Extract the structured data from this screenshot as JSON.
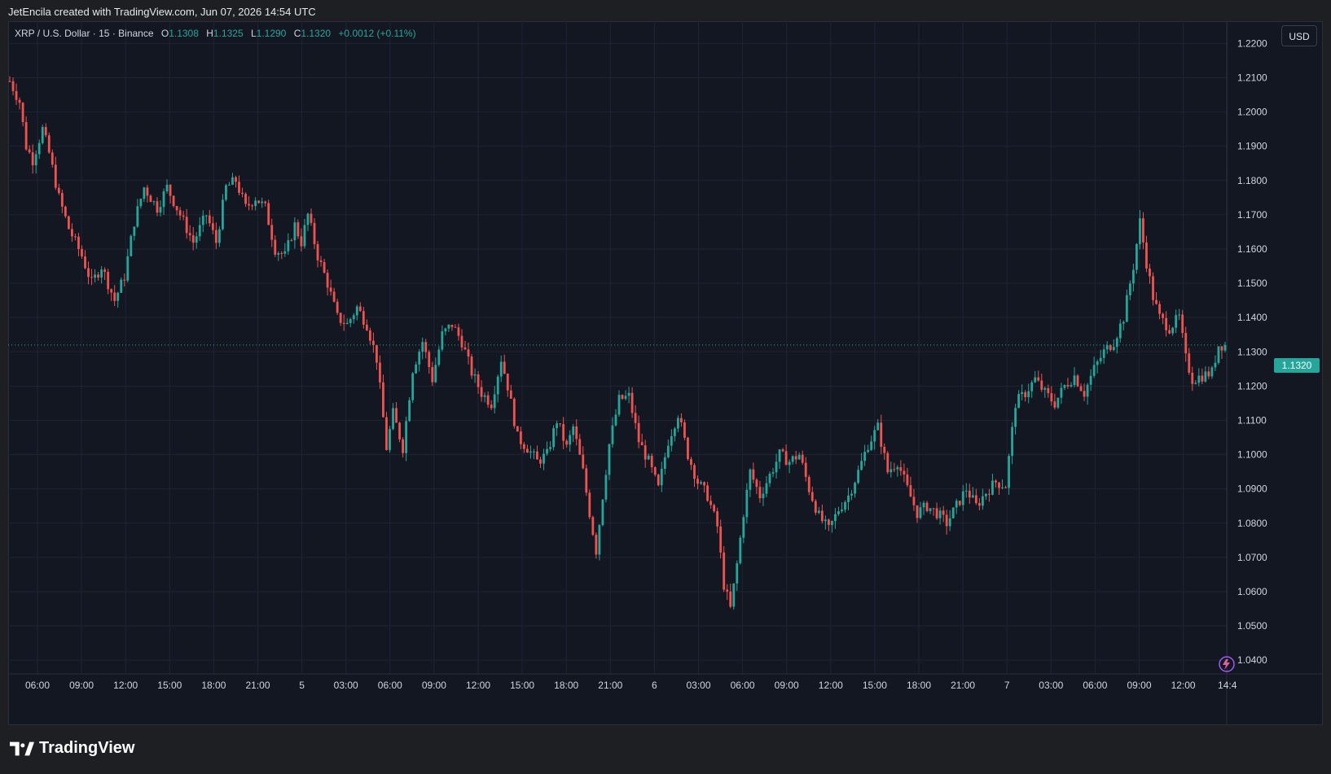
{
  "banner": "JetEncila created with TradingView.com, Jun 07, 2026 14:54 UTC",
  "legend": {
    "symbol": "XRP / U.S. Dollar · 15 · Binance",
    "o_label": "O",
    "o_value": "1.1308",
    "h_label": "H",
    "h_value": "1.1325",
    "l_label": "L",
    "l_value": "1.1290",
    "c_label": "C",
    "c_value": "1.1320",
    "change": "+0.0012 (+0.11%)"
  },
  "currency": "USD",
  "last_price": "1.1320",
  "brand": "TradingView",
  "colors": {
    "up": "#26a69a",
    "down": "#ef5350",
    "background": "#131722",
    "grid": "#1f2433"
  },
  "chart_data": {
    "type": "candlestick",
    "interval_minutes": 15,
    "ylim": [
      1.036,
      1.2265
    ],
    "y_ticks": [
      "1.2200",
      "1.2100",
      "1.2000",
      "1.1900",
      "1.1800",
      "1.1700",
      "1.1600",
      "1.1500",
      "1.1400",
      "1.1300",
      "1.1200",
      "1.1100",
      "1.1000",
      "1.0900",
      "1.0800",
      "1.0700",
      "1.0600",
      "1.0500",
      "1.0400"
    ],
    "x_labels": [
      "06:00",
      "09:00",
      "12:00",
      "15:00",
      "18:00",
      "21:00",
      "5",
      "03:00",
      "06:00",
      "09:00",
      "12:00",
      "15:00",
      "18:00",
      "21:00",
      "6",
      "03:00",
      "06:00",
      "09:00",
      "12:00",
      "15:00",
      "18:00",
      "21:00",
      "7",
      "03:00",
      "06:00",
      "09:00",
      "12:00",
      "14:4"
    ],
    "last_close": 1.132,
    "path_keypoints": [
      [
        0,
        1.209
      ],
      [
        3,
        1.203
      ],
      [
        5,
        1.19
      ],
      [
        7,
        1.186
      ],
      [
        10,
        1.195
      ],
      [
        12,
        1.188
      ],
      [
        15,
        1.175
      ],
      [
        18,
        1.166
      ],
      [
        22,
        1.158
      ],
      [
        25,
        1.15
      ],
      [
        28,
        1.155
      ],
      [
        32,
        1.145
      ],
      [
        35,
        1.152
      ],
      [
        38,
        1.168
      ],
      [
        41,
        1.178
      ],
      [
        45,
        1.172
      ],
      [
        48,
        1.178
      ],
      [
        52,
        1.17
      ],
      [
        56,
        1.162
      ],
      [
        60,
        1.17
      ],
      [
        63,
        1.162
      ],
      [
        66,
        1.178
      ],
      [
        69,
        1.18
      ],
      [
        72,
        1.172
      ],
      [
        75,
        1.175
      ],
      [
        78,
        1.172
      ],
      [
        81,
        1.16
      ],
      [
        84,
        1.158
      ],
      [
        87,
        1.167
      ],
      [
        89,
        1.162
      ],
      [
        91,
        1.17
      ],
      [
        94,
        1.158
      ],
      [
        97,
        1.15
      ],
      [
        100,
        1.14
      ],
      [
        103,
        1.138
      ],
      [
        106,
        1.143
      ],
      [
        109,
        1.138
      ],
      [
        112,
        1.128
      ],
      [
        115,
        1.102
      ],
      [
        117,
        1.112
      ],
      [
        120,
        1.102
      ],
      [
        123,
        1.125
      ],
      [
        126,
        1.133
      ],
      [
        129,
        1.122
      ],
      [
        132,
        1.135
      ],
      [
        135,
        1.138
      ],
      [
        138,
        1.133
      ],
      [
        141,
        1.124
      ],
      [
        144,
        1.118
      ],
      [
        147,
        1.115
      ],
      [
        150,
        1.128
      ],
      [
        152,
        1.12
      ],
      [
        155,
        1.105
      ],
      [
        158,
        1.102
      ],
      [
        161,
        1.098
      ],
      [
        164,
        1.1
      ],
      [
        167,
        1.11
      ],
      [
        170,
        1.102
      ],
      [
        172,
        1.108
      ],
      [
        175,
        1.095
      ],
      [
        177,
        1.083
      ],
      [
        179,
        1.072
      ],
      [
        181,
        1.088
      ],
      [
        183,
        1.103
      ],
      [
        186,
        1.116
      ],
      [
        189,
        1.117
      ],
      [
        192,
        1.104
      ],
      [
        195,
        1.098
      ],
      [
        198,
        1.09
      ],
      [
        201,
        1.104
      ],
      [
        204,
        1.112
      ],
      [
        207,
        1.1
      ],
      [
        210,
        1.092
      ],
      [
        213,
        1.088
      ],
      [
        216,
        1.079
      ],
      [
        218,
        1.062
      ],
      [
        220,
        1.055
      ],
      [
        222,
        1.068
      ],
      [
        224,
        1.083
      ],
      [
        226,
        1.095
      ],
      [
        229,
        1.088
      ],
      [
        232,
        1.094
      ],
      [
        235,
        1.1
      ],
      [
        238,
        1.098
      ],
      [
        241,
        1.1
      ],
      [
        244,
        1.09
      ],
      [
        247,
        1.082
      ],
      [
        250,
        1.078
      ],
      [
        253,
        1.084
      ],
      [
        256,
        1.088
      ],
      [
        259,
        1.095
      ],
      [
        262,
        1.103
      ],
      [
        265,
        1.108
      ],
      [
        268,
        1.095
      ],
      [
        271,
        1.098
      ],
      [
        274,
        1.09
      ],
      [
        277,
        1.083
      ],
      [
        280,
        1.085
      ],
      [
        283,
        1.083
      ],
      [
        286,
        1.08
      ],
      [
        289,
        1.085
      ],
      [
        292,
        1.09
      ],
      [
        295,
        1.085
      ],
      [
        298,
        1.089
      ],
      [
        301,
        1.092
      ],
      [
        304,
        1.091
      ],
      [
        307,
        1.115
      ],
      [
        310,
        1.118
      ],
      [
        313,
        1.122
      ],
      [
        316,
        1.118
      ],
      [
        319,
        1.115
      ],
      [
        322,
        1.12
      ],
      [
        325,
        1.123
      ],
      [
        328,
        1.118
      ],
      [
        331,
        1.125
      ],
      [
        334,
        1.13
      ],
      [
        337,
        1.133
      ],
      [
        340,
        1.14
      ],
      [
        343,
        1.155
      ],
      [
        345,
        1.168
      ],
      [
        347,
        1.156
      ],
      [
        349,
        1.146
      ],
      [
        351,
        1.14
      ],
      [
        354,
        1.137
      ],
      [
        357,
        1.14
      ],
      [
        359,
        1.128
      ],
      [
        361,
        1.122
      ],
      [
        364,
        1.123
      ],
      [
        367,
        1.124
      ],
      [
        369,
        1.132
      ],
      [
        371,
        1.132
      ]
    ]
  }
}
